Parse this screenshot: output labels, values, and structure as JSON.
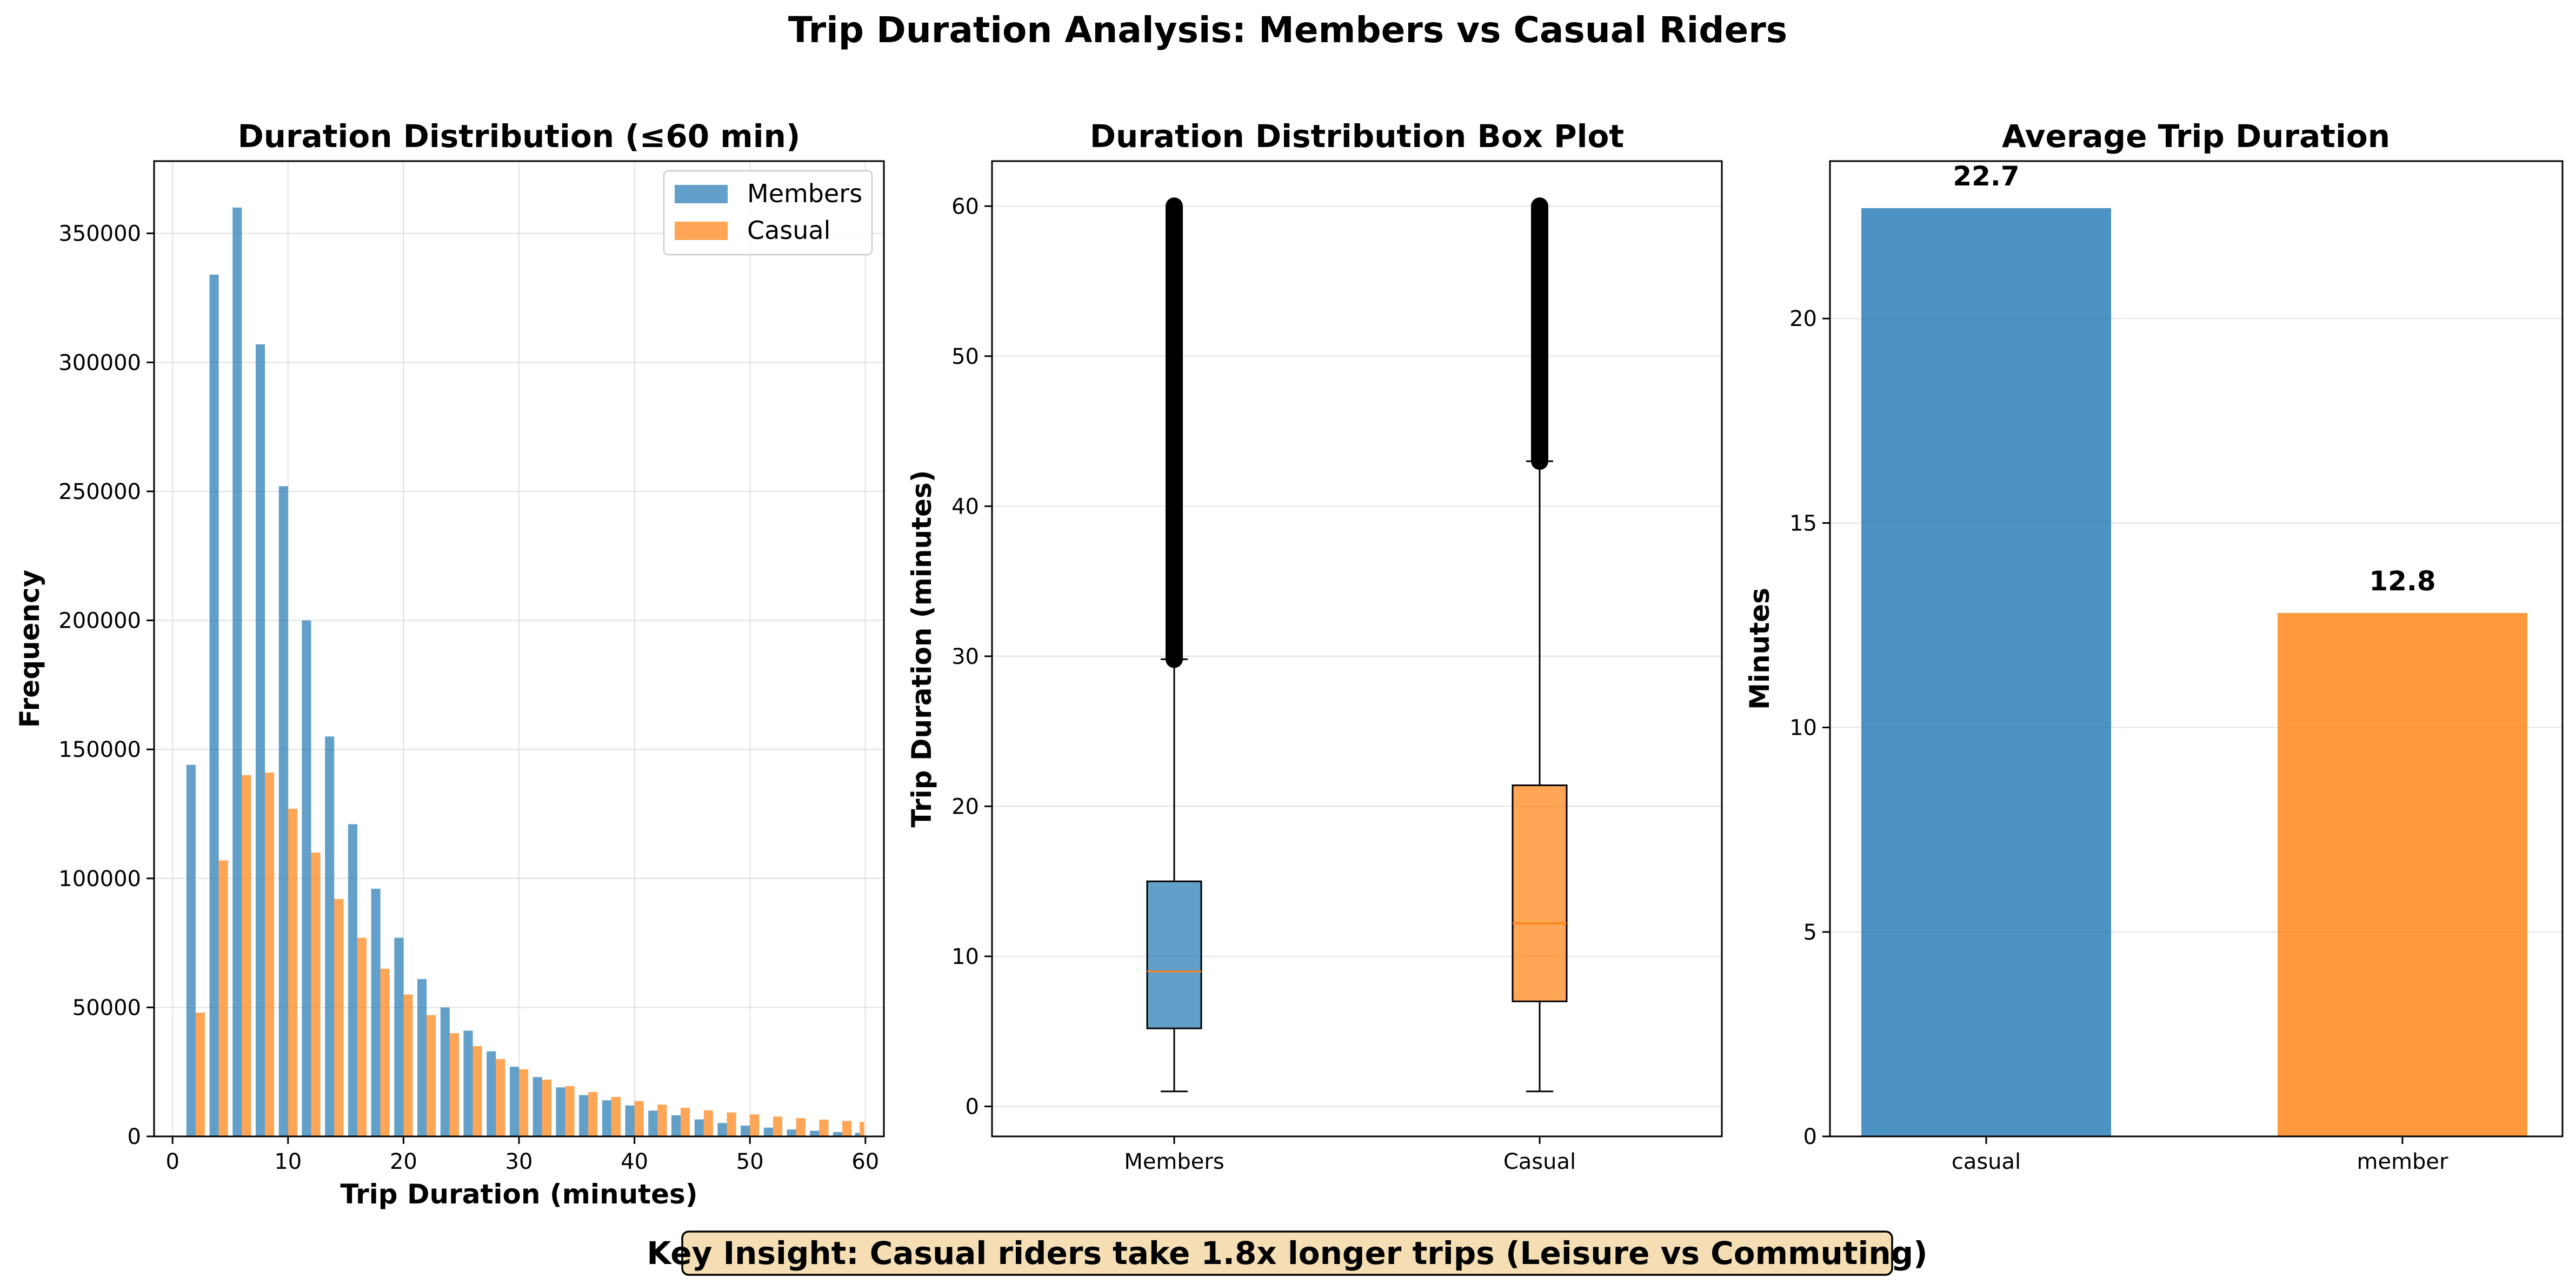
{
  "suptitle": "Trip Duration Analysis: Members vs Casual Riders",
  "insight": "Key Insight: Casual riders take 1.8x longer trips (Leisure vs Commuting)",
  "colors": {
    "members": "#1f77b4",
    "casual": "#ff7f0e",
    "insight_bg": "#f5deb3"
  },
  "chart_data": [
    {
      "type": "bar",
      "subtype": "histogram",
      "title": "Duration Distribution (≤60 min)",
      "xlabel": "Trip Duration (minutes)",
      "ylabel": "Frequency",
      "xlim": [
        -1.6,
        61.6
      ],
      "ylim": [
        0,
        378000
      ],
      "xticks": [
        0,
        10,
        20,
        30,
        40,
        50,
        60
      ],
      "yticks": [
        0,
        50000,
        100000,
        150000,
        200000,
        250000,
        300000,
        350000
      ],
      "grid": true,
      "legend": "top-right",
      "bin_edges": [
        1,
        3,
        5,
        7,
        9,
        11,
        13,
        15,
        17,
        19,
        21,
        23,
        25,
        27,
        29,
        31,
        33,
        35,
        37,
        39,
        41,
        43,
        45,
        47,
        49,
        51,
        53,
        55,
        57,
        59,
        60
      ],
      "series": [
        {
          "name": "Members",
          "values": [
            144000,
            334000,
            360000,
            307000,
            252000,
            200000,
            155000,
            121000,
            96000,
            77000,
            61000,
            50000,
            41000,
            33000,
            27000,
            23000,
            19000,
            16000,
            14000,
            12000,
            10000,
            8200,
            6600,
            5200,
            4200,
            3400,
            2700,
            2200,
            1700,
            1400
          ]
        },
        {
          "name": "Casual",
          "values": [
            48000,
            107000,
            140000,
            141000,
            127000,
            110000,
            92000,
            77000,
            65000,
            55000,
            47000,
            40000,
            35000,
            30000,
            26000,
            22000,
            19500,
            17200,
            15300,
            13700,
            12300,
            11100,
            10100,
            9300,
            8500,
            7700,
            7100,
            6500,
            6000,
            5600
          ]
        }
      ]
    },
    {
      "type": "box",
      "title": "Duration Distribution Box Plot",
      "ylabel": "Trip Duration (minutes)",
      "ylim": [
        -2,
        63
      ],
      "yticks": [
        0,
        10,
        20,
        30,
        40,
        50,
        60
      ],
      "grid": true,
      "categories": [
        "Members",
        "Casual"
      ],
      "boxes": [
        {
          "name": "Members",
          "whisker_low": 1,
          "q1": 5.2,
          "median": 9.0,
          "q3": 15.0,
          "whisker_high": 29.8,
          "outliers_from": 29.8,
          "outliers_to": 60
        },
        {
          "name": "Casual",
          "whisker_low": 1,
          "q1": 7.0,
          "median": 12.2,
          "q3": 21.4,
          "whisker_high": 43.0,
          "outliers_from": 43.0,
          "outliers_to": 60
        }
      ]
    },
    {
      "type": "bar",
      "title": "Average Trip Duration",
      "ylabel": "Minutes",
      "xlabel": "",
      "ylim": [
        0,
        23.85
      ],
      "yticks": [
        0,
        5,
        10,
        15,
        20
      ],
      "grid": true,
      "categories": [
        "casual",
        "member"
      ],
      "values": [
        22.7,
        12.8
      ],
      "data_labels": [
        "22.7",
        "12.8"
      ]
    }
  ]
}
